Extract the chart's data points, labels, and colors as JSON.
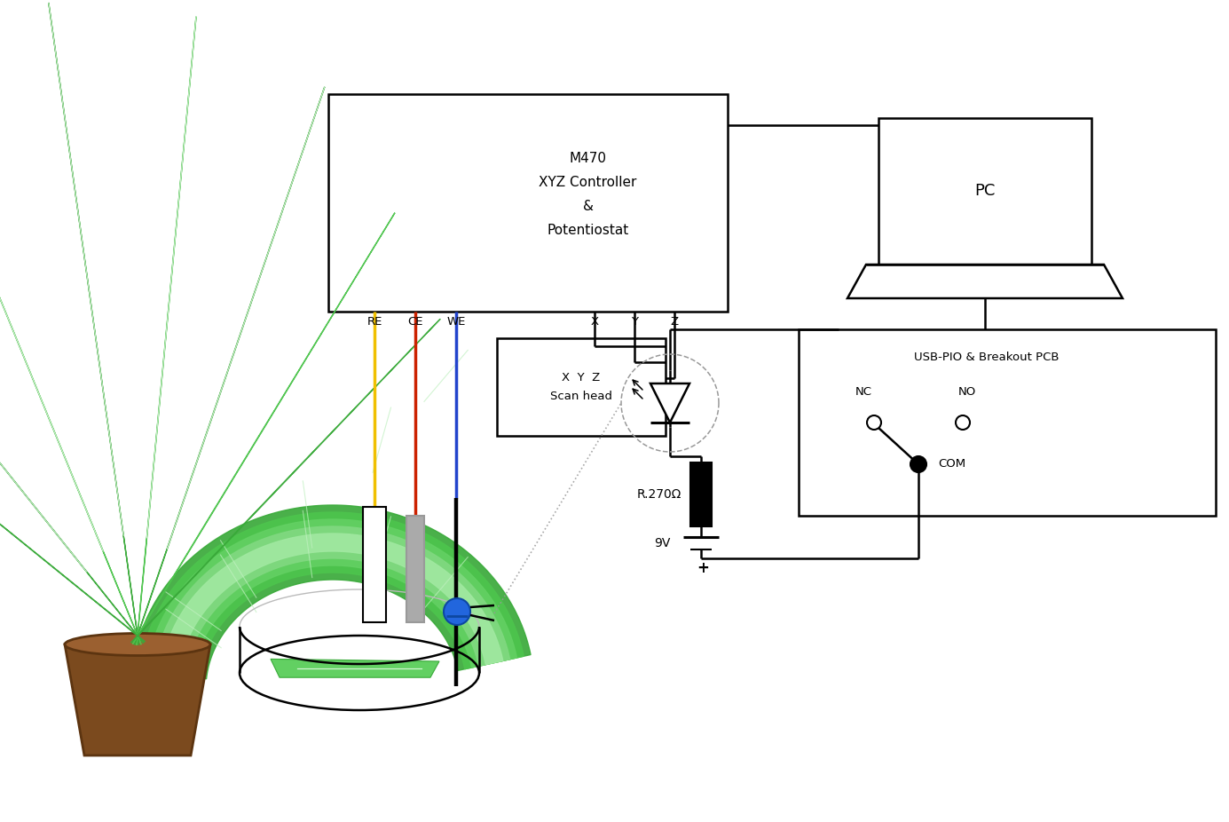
{
  "bg_color": "#ffffff",
  "pot_color": "#7b4a1e",
  "pot_dark": "#5c3410",
  "plant_dark": "#3aaa3a",
  "plant_mid": "#4dc44d",
  "plant_light": "#80d880",
  "plant_stripe": "#c8f0c8",
  "yellow_wire": "#f0c000",
  "red_wire": "#cc2200",
  "blue_wire": "#2244cc",
  "m470_label": "M470\nXYZ Controller\n&\nPotentiostat",
  "scan_head_label": "X  Y  Z\nScan head",
  "pc_label": "PC",
  "usb_label": "USB-PIO & Breakout PCB",
  "battery_label": "9V",
  "resistor_label": "R.270Ω",
  "nc_label": "NC",
  "no_label": "NO",
  "com_label": "COM",
  "re_label": "RE",
  "ce_label": "CE",
  "we_label": "WE"
}
